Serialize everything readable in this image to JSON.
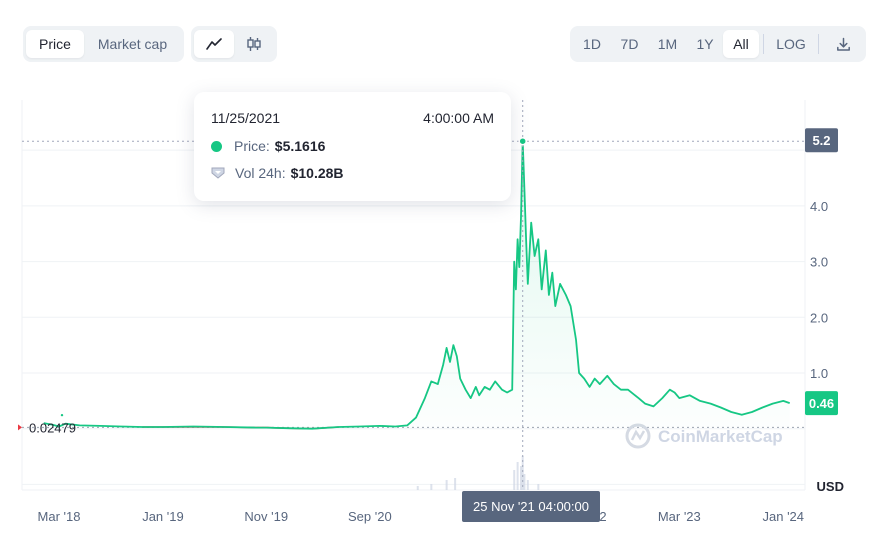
{
  "toolbar": {
    "view_tabs": [
      {
        "label": "Price",
        "active": true
      },
      {
        "label": "Market cap",
        "active": false
      }
    ],
    "chart_types": [
      {
        "icon": "line-chart-icon",
        "active": true
      },
      {
        "icon": "candlestick-icon",
        "active": false
      }
    ],
    "ranges": [
      {
        "label": "1D",
        "active": false
      },
      {
        "label": "7D",
        "active": false
      },
      {
        "label": "1M",
        "active": false
      },
      {
        "label": "1Y",
        "active": false
      },
      {
        "label": "All",
        "active": true
      }
    ],
    "log_label": "LOG",
    "download_icon": "download-icon"
  },
  "tooltip": {
    "date": "11/25/2021",
    "time": "4:00:00 AM",
    "price_label": "Price:",
    "price_value": "$5.1616",
    "vol_label": "Vol 24h:",
    "vol_value": "$10.28B"
  },
  "crosshair_label": "25 Nov '21 04:00:00",
  "watermark": "CoinMarketCap",
  "colors": {
    "line": "#16c784",
    "line_below": "#ea3943",
    "badge_current": "#16c784",
    "badge_high": "#58667e"
  },
  "chart_data": {
    "type": "line",
    "xlabel": "",
    "ylabel": "USD",
    "yticks": [
      "1.0",
      "2.0",
      "3.0",
      "4.0"
    ],
    "xticks": [
      "Mar '18",
      "Jan '19",
      "Nov '19",
      "Sep '20",
      "Mar '23",
      "Jan '24"
    ],
    "partially_hidden_xtick": "2",
    "ylim": [
      -1.1,
      5.9
    ],
    "baseline_label": "0.02479",
    "high_label": "5.2",
    "current_label": "0.46",
    "grid": true,
    "series": [
      {
        "values": [
          [
            "2018-01-15",
            0.1
          ],
          [
            "2018-02-10",
            0.07
          ],
          [
            "2018-03-01",
            0.04
          ],
          [
            "2018-03-20",
            0.09
          ],
          [
            "2018-05-01",
            0.06
          ],
          [
            "2018-07-01",
            0.05
          ],
          [
            "2018-09-01",
            0.04
          ],
          [
            "2018-11-01",
            0.03
          ],
          [
            "2019-01-01",
            0.03
          ],
          [
            "2019-04-01",
            0.04
          ],
          [
            "2019-07-01",
            0.03
          ],
          [
            "2019-10-01",
            0.02
          ],
          [
            "2019-11-01",
            0.02
          ],
          [
            "2020-01-01",
            0.01
          ],
          [
            "2020-03-15",
            0.0
          ],
          [
            "2020-06-01",
            0.03
          ],
          [
            "2020-08-01",
            0.04
          ],
          [
            "2020-10-01",
            0.05
          ],
          [
            "2020-11-15",
            0.04
          ],
          [
            "2020-12-20",
            0.06
          ],
          [
            "2021-01-15",
            0.2
          ],
          [
            "2021-02-10",
            0.55
          ],
          [
            "2021-03-01",
            0.85
          ],
          [
            "2021-03-20",
            0.8
          ],
          [
            "2021-04-05",
            1.15
          ],
          [
            "2021-04-15",
            1.45
          ],
          [
            "2021-04-25",
            1.2
          ],
          [
            "2021-05-05",
            1.5
          ],
          [
            "2021-05-15",
            1.3
          ],
          [
            "2021-05-25",
            0.9
          ],
          [
            "2021-06-10",
            0.7
          ],
          [
            "2021-06-25",
            0.55
          ],
          [
            "2021-07-10",
            0.75
          ],
          [
            "2021-07-20",
            0.6
          ],
          [
            "2021-08-05",
            0.75
          ],
          [
            "2021-08-20",
            0.7
          ],
          [
            "2021-09-05",
            0.85
          ],
          [
            "2021-09-25",
            0.7
          ],
          [
            "2021-10-10",
            0.65
          ],
          [
            "2021-10-25",
            0.7
          ],
          [
            "2021-10-31",
            3.0
          ],
          [
            "2021-11-05",
            2.5
          ],
          [
            "2021-11-10",
            3.4
          ],
          [
            "2021-11-15",
            2.9
          ],
          [
            "2021-11-20",
            3.8
          ],
          [
            "2021-11-25",
            5.16
          ],
          [
            "2021-11-30",
            4.3
          ],
          [
            "2021-12-05",
            3.4
          ],
          [
            "2021-12-10",
            2.6
          ],
          [
            "2021-12-20",
            3.7
          ],
          [
            "2021-12-30",
            3.1
          ],
          [
            "2022-01-10",
            3.4
          ],
          [
            "2022-01-20",
            2.5
          ],
          [
            "2022-02-01",
            3.2
          ],
          [
            "2022-02-10",
            2.4
          ],
          [
            "2022-02-20",
            2.8
          ],
          [
            "2022-03-01",
            2.2
          ],
          [
            "2022-03-15",
            2.6
          ],
          [
            "2022-04-01",
            2.4
          ],
          [
            "2022-04-15",
            2.2
          ],
          [
            "2022-05-01",
            1.6
          ],
          [
            "2022-05-10",
            1.0
          ],
          [
            "2022-05-25",
            0.9
          ],
          [
            "2022-06-10",
            0.75
          ],
          [
            "2022-06-25",
            0.9
          ],
          [
            "2022-07-10",
            0.8
          ],
          [
            "2022-08-01",
            0.95
          ],
          [
            "2022-08-20",
            0.8
          ],
          [
            "2022-09-10",
            0.7
          ],
          [
            "2022-10-01",
            0.7
          ],
          [
            "2022-11-01",
            0.55
          ],
          [
            "2022-11-20",
            0.45
          ],
          [
            "2022-12-15",
            0.4
          ],
          [
            "2023-01-10",
            0.55
          ],
          [
            "2023-02-01",
            0.7
          ],
          [
            "2023-02-15",
            0.65
          ],
          [
            "2023-03-01",
            0.55
          ],
          [
            "2023-04-01",
            0.6
          ],
          [
            "2023-05-01",
            0.5
          ],
          [
            "2023-06-01",
            0.45
          ],
          [
            "2023-07-01",
            0.38
          ],
          [
            "2023-08-01",
            0.3
          ],
          [
            "2023-09-01",
            0.25
          ],
          [
            "2023-10-01",
            0.3
          ],
          [
            "2023-11-01",
            0.38
          ],
          [
            "2023-12-01",
            0.45
          ],
          [
            "2024-01-01",
            0.5
          ],
          [
            "2024-01-20",
            0.46
          ]
        ]
      }
    ]
  }
}
